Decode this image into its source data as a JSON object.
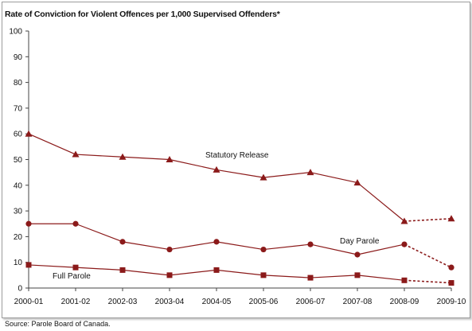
{
  "chart_data": {
    "type": "line",
    "title": "Rate of Conviction for Violent Offences per 1,000 Supervised Offenders*",
    "source": "Source:  Parole Board of Canada.",
    "categories": [
      "2000-01",
      "2001-02",
      "2002-03",
      "2003-04",
      "2004-05",
      "2005-06",
      "2006-07",
      "2007-08",
      "2008-09",
      "2009-10"
    ],
    "ylim": [
      0,
      100
    ],
    "yticks": [
      0,
      10,
      20,
      30,
      40,
      50,
      60,
      70,
      80,
      90,
      100
    ],
    "grid": false,
    "line_color": "#8b1a1a",
    "series": [
      {
        "name": "Statutory Release",
        "marker": "triangle",
        "values": [
          60,
          52,
          51,
          50,
          46,
          43,
          45,
          41,
          26,
          27
        ],
        "dashed_from_index": 8
      },
      {
        "name": "Day Parole",
        "marker": "circle",
        "values": [
          25,
          25,
          18,
          15,
          18,
          15,
          17,
          13,
          17,
          8
        ],
        "dashed_from_index": 8
      },
      {
        "name": "Full Parole",
        "marker": "square",
        "values": [
          9,
          8,
          7,
          5,
          7,
          5,
          4,
          5,
          3,
          2
        ],
        "dashed_from_index": 8
      }
    ]
  }
}
